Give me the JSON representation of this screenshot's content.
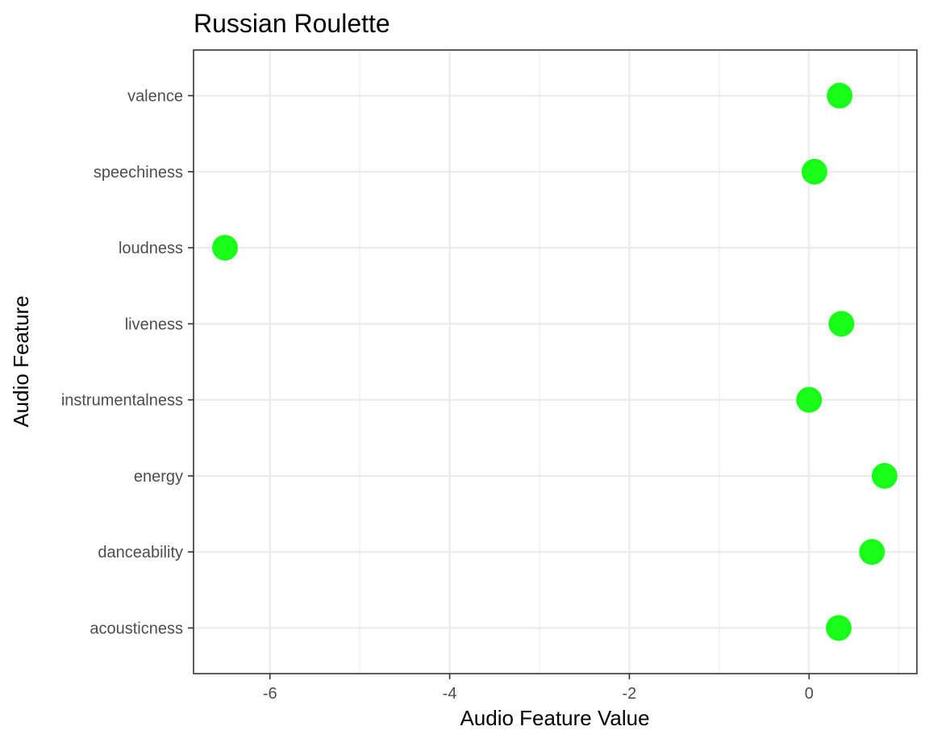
{
  "chart_data": {
    "type": "scatter",
    "title": "Russian Roulette",
    "xlabel": "Audio Feature Value",
    "ylabel": "Audio Feature",
    "xlim": [
      -6.85,
      1.2
    ],
    "x_ticks": [
      -6,
      -4,
      -2,
      0
    ],
    "x_tick_labels": [
      "-6",
      "-4",
      "-2",
      "0"
    ],
    "x_minor_ticks": [
      -5,
      -3,
      -1,
      1
    ],
    "categories": [
      "acousticness",
      "danceability",
      "energy",
      "instrumentalness",
      "liveness",
      "loudness",
      "speechiness",
      "valence"
    ],
    "values": [
      0.33,
      0.7,
      0.84,
      0.0,
      0.36,
      -6.5,
      0.06,
      0.34
    ],
    "point_color": "#1aff1a",
    "grid": true,
    "legend": "none"
  }
}
